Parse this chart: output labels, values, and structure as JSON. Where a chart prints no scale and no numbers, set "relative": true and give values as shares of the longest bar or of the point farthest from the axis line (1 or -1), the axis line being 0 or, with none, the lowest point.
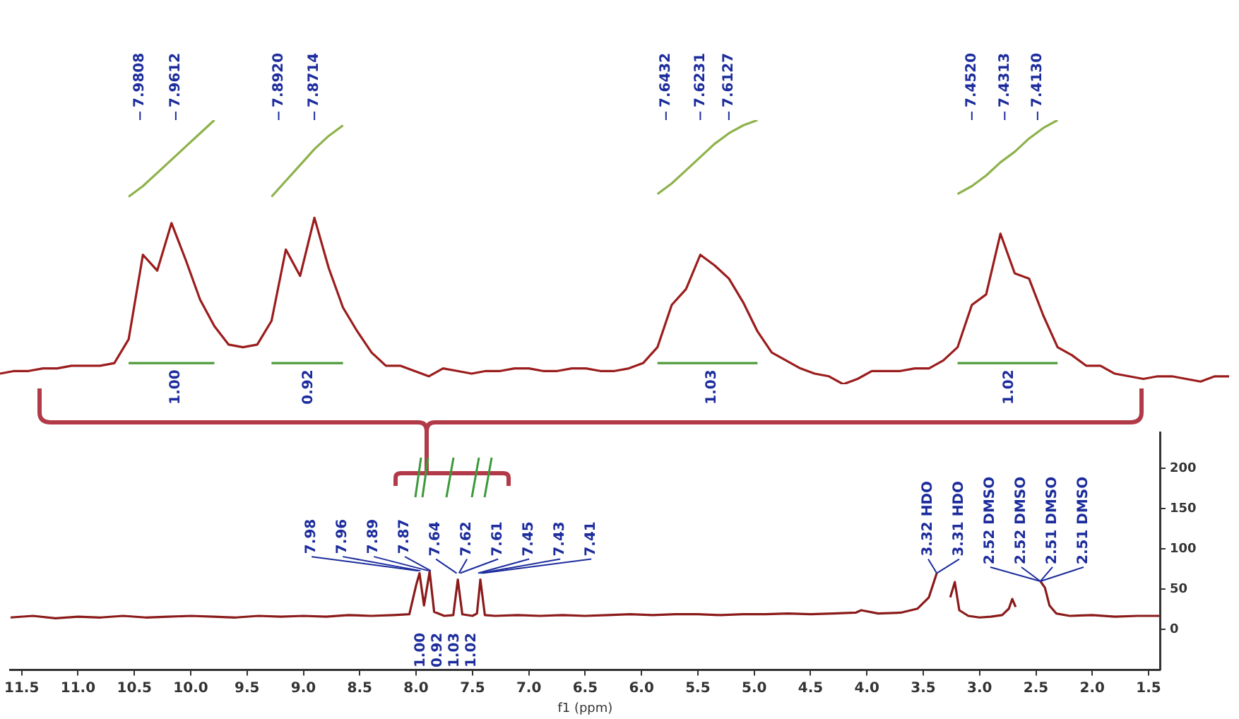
{
  "chart_data": [
    {
      "type": "line",
      "relative": true,
      "marker": "none",
      "categories": [
        null,
        null,
        null,
        null,
        null,
        null,
        null,
        null,
        null,
        null,
        null,
        null,
        null,
        null,
        null,
        null,
        null,
        null,
        null,
        null,
        null,
        null,
        null,
        null,
        null,
        null,
        null,
        null,
        null,
        null,
        null,
        null,
        null,
        null,
        null,
        null,
        null,
        null,
        null,
        null,
        null,
        null,
        null,
        null,
        null,
        null,
        null,
        null,
        null,
        null,
        null,
        null,
        null,
        null,
        null,
        null,
        null,
        null,
        null,
        null,
        null,
        null,
        null,
        null,
        null,
        null,
        null,
        null,
        null,
        null,
        null,
        null,
        null,
        null,
        null,
        null,
        null,
        null,
        null,
        null,
        null,
        null,
        null,
        null,
        null,
        null,
        null
      ],
      "series": [
        {
          "color": "#9b1c1c",
          "values": [
            0.04,
            0.05,
            0.05,
            0.06,
            0.06,
            0.07,
            0.07,
            0.07,
            0.08,
            0.17,
            0.49,
            0.43,
            0.61,
            0.47,
            0.32,
            0.22,
            0.15,
            0.14,
            0.15,
            0.24,
            0.51,
            0.41,
            0.63,
            0.44,
            0.29,
            0.2,
            0.12,
            0.07,
            0.07,
            0.05,
            0.03,
            0.06,
            0.05,
            0.04,
            0.05,
            0.05,
            0.06,
            0.06,
            0.05,
            0.05,
            0.06,
            0.06,
            0.05,
            0.05,
            0.06,
            0.08,
            0.14,
            0.3,
            0.36,
            0.49,
            0.45,
            0.4,
            0.31,
            0.2,
            0.12,
            0.09,
            0.06,
            0.04,
            0.03,
            0,
            0.02,
            0.05,
            0.05,
            0.05,
            0.06,
            0.06,
            0.09,
            0.14,
            0.3,
            0.34,
            0.57,
            0.42,
            0.4,
            0.26,
            0.14,
            0.11,
            0.07,
            0.07,
            0.04,
            0.03,
            0.02,
            0.03,
            0.03,
            0.02,
            0.01,
            0.03,
            0.03
          ]
        },
        {
          "color": "#8db24a",
          "values": [
            null,
            null,
            null,
            null,
            null,
            null,
            null,
            null,
            null,
            0.71,
            0.75,
            0.8,
            0.85,
            0.9,
            0.95,
            1,
            null,
            null,
            null,
            0.71,
            0.77,
            0.83,
            0.89,
            0.94,
            0.98,
            null,
            null,
            null,
            null,
            null,
            null,
            null,
            null,
            null,
            null,
            null,
            null,
            null,
            null,
            null,
            null,
            null,
            null,
            null,
            null,
            null,
            0.72,
            0.76,
            0.81,
            0.86,
            0.91,
            0.95,
            0.98,
            1,
            null,
            null,
            null,
            null,
            null,
            null,
            null,
            null,
            null,
            null,
            null,
            null,
            null,
            0.72,
            0.75,
            0.79,
            0.84,
            0.88,
            0.93,
            0.97,
            1,
            null,
            null,
            null,
            null,
            null,
            null,
            null,
            null,
            null,
            null,
            null,
            null
          ]
        },
        {
          "color": "#4f9a3a",
          "values": [
            null,
            null,
            null,
            null,
            null,
            null,
            null,
            null,
            null,
            0.08,
            0.08,
            0.08,
            0.08,
            0.08,
            0.08,
            0.08,
            null,
            null,
            null,
            0.08,
            0.08,
            0.08,
            0.08,
            0.08,
            0.08,
            null,
            null,
            null,
            null,
            null,
            null,
            null,
            null,
            null,
            null,
            null,
            null,
            null,
            null,
            null,
            null,
            null,
            null,
            null,
            null,
            null,
            0.08,
            0.08,
            0.08,
            0.08,
            0.08,
            0.08,
            0.08,
            0.08,
            null,
            null,
            null,
            null,
            null,
            null,
            null,
            null,
            null,
            null,
            null,
            null,
            null,
            0.08,
            0.08,
            0.08,
            0.08,
            0.08,
            0.08,
            0.08,
            0.08,
            null,
            null,
            null,
            null,
            null,
            null,
            null,
            null,
            null,
            null,
            null,
            null
          ]
        }
      ],
      "annotations": [
        "7.9808",
        "7.9612",
        "7.8920",
        "7.8714",
        "7.6432",
        "7.6231",
        "7.6127",
        "7.4520",
        "7.4313",
        "7.4130",
        "1.00",
        "0.92",
        "1.03",
        "1.02"
      ]
    },
    {
      "type": "line",
      "marker": "none",
      "color": "#8b1a1a",
      "xlabel": "f1 (ppm)",
      "x": [
        11.6,
        11.4,
        11.2,
        11.0,
        10.8,
        10.6,
        10.4,
        10.2,
        10.0,
        9.8,
        9.6,
        9.4,
        9.2,
        9.0,
        8.8,
        8.6,
        8.4,
        8.2,
        8.06,
        8.0,
        7.97,
        7.93,
        7.88,
        7.84,
        7.75,
        7.67,
        7.63,
        7.59,
        7.5,
        7.46,
        7.43,
        7.39,
        7.3,
        7.1,
        6.9,
        6.7,
        6.5,
        6.3,
        6.1,
        5.9,
        5.7,
        5.5,
        5.3,
        5.1,
        4.9,
        4.7,
        4.5,
        4.3,
        4.1,
        4.05,
        3.9,
        3.7,
        3.55,
        3.45,
        3.38,
        3.34,
        3.3,
        3.26,
        3.22,
        3.18,
        3.1,
        3.0,
        2.9,
        2.8,
        2.74,
        2.71,
        2.68,
        2.62,
        2.56,
        2.5,
        2.46,
        2.42,
        2.38,
        2.32,
        2.2,
        2.0,
        1.8,
        1.6,
        1.4
      ],
      "values": [
        15,
        17,
        14,
        16,
        15,
        17,
        15,
        16,
        17,
        16,
        15,
        17,
        16,
        17,
        16,
        18,
        17,
        18,
        19,
        55,
        70,
        30,
        72,
        22,
        17,
        18,
        62,
        19,
        17,
        20,
        62,
        18,
        17,
        18,
        17,
        18,
        17,
        18,
        19,
        18,
        19,
        19,
        18,
        19,
        19,
        20,
        19,
        20,
        21,
        24,
        20,
        21,
        26,
        40,
        70,
        null,
        null,
        40,
        59,
        24,
        17,
        15,
        16,
        18,
        26,
        38,
        28,
        null,
        null,
        null,
        60,
        52,
        30,
        20,
        17,
        18,
        16,
        17,
        17
      ],
      "xlim": [
        11.6,
        1.4
      ],
      "xticks": [
        11.5,
        {
          "value": 11,
          "label": "11.0"
        },
        10.5,
        {
          "value": 10,
          "label": "10.0"
        },
        9.5,
        {
          "value": 9,
          "label": "9.0"
        },
        8.5,
        {
          "value": 8,
          "label": "8.0"
        },
        7.5,
        {
          "value": 7,
          "label": "7.0"
        },
        6.5,
        {
          "value": 6,
          "label": "6.0"
        },
        5.5,
        {
          "value": 5,
          "label": "5.0"
        },
        4.5,
        {
          "value": 4,
          "label": "4.0"
        },
        3.5,
        {
          "value": 3,
          "label": "3.0"
        },
        2.5,
        {
          "value": 2,
          "label": "2.0"
        },
        1.5
      ],
      "ylim": [
        -50,
        245
      ],
      "yticks": [
        0,
        50,
        100,
        150,
        200
      ],
      "annotations": [
        {
          "text": "7.98",
          "x": 7.98,
          "y": 73
        },
        {
          "text": "7.96",
          "x": 7.96,
          "y": 73
        },
        {
          "text": "7.89",
          "x": 7.89,
          "y": 73
        },
        {
          "text": "7.87",
          "x": 7.87,
          "y": 73
        },
        {
          "text": "7.64",
          "x": 7.64,
          "y": 70
        },
        {
          "text": "7.62",
          "x": 7.62,
          "y": 70
        },
        {
          "text": "7.61",
          "x": 7.61,
          "y": 70
        },
        {
          "text": "7.45",
          "x": 7.45,
          "y": 70
        },
        {
          "text": "7.43",
          "x": 7.43,
          "y": 70
        },
        {
          "text": "7.41",
          "x": 7.41,
          "y": 70
        },
        {
          "text": "3.32 HDO",
          "x": 3.38,
          "y": 70
        },
        {
          "text": "3.31 HDO",
          "x": 3.38,
          "y": 70
        },
        {
          "text": "2.52 DMSO",
          "x": 2.46,
          "y": 60
        },
        {
          "text": "2.52 DMSO",
          "x": 2.46,
          "y": 60
        },
        {
          "text": "2.51 DMSO",
          "x": 2.46,
          "y": 60
        },
        {
          "text": "2.51 DMSO",
          "x": 2.46,
          "y": 60
        },
        "1.00",
        "0.92",
        "1.03",
        "1.02"
      ]
    }
  ]
}
